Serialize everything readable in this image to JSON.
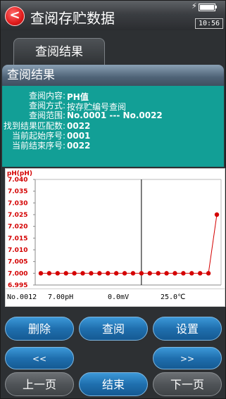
{
  "header": {
    "back_icon": "chevron-left-icon",
    "back_glyph": "<",
    "title": "查阅存贮数据",
    "time": "10:56"
  },
  "tab": {
    "label": "查阅结果"
  },
  "panel": {
    "title": "查阅结果",
    "info": [
      {
        "label": "查阅内容:",
        "value": "PH值"
      },
      {
        "label": "查阅方式:",
        "value": "按存贮编号查阅"
      },
      {
        "label": "查阅范围:",
        "value": "No.0001 --- No.0022"
      },
      {
        "label": "找到结果匹配数:",
        "value": "0022"
      },
      {
        "label": "当前起始序号:",
        "value": "0001"
      },
      {
        "label": "当前结束序号:",
        "value": "0022"
      }
    ]
  },
  "chart_data": {
    "type": "line",
    "ylabel": "pH(pH)",
    "ylim": [
      6.995,
      7.04
    ],
    "y_ticks": [
      "7.040",
      "7.035",
      "7.030",
      "7.025",
      "7.020",
      "7.015",
      "7.010",
      "7.005",
      "7.000",
      "6.995"
    ],
    "series": [
      {
        "values": [
          7.0,
          7.0,
          7.0,
          7.0,
          7.0,
          7.0,
          7.0,
          7.0,
          7.0,
          7.0,
          7.0,
          7.0,
          7.0,
          7.0,
          7.0,
          7.0,
          7.0,
          7.0,
          7.0,
          7.0,
          7.0,
          7.025
        ]
      }
    ],
    "cursor_index": 12,
    "colors": {
      "line": "#d40000",
      "axis_text": "#d40000",
      "cursor": "#000000",
      "grid": "#c0c0c0"
    }
  },
  "readout": {
    "no": "No.0012",
    "ph": "7.00pH",
    "mv": "0.0mV",
    "temp": "25.0℃"
  },
  "buttons": {
    "delete": "删除",
    "query": "查阅",
    "settings": "设置",
    "prev_fast": "<<",
    "next_fast": ">>",
    "prev_page": "上一页",
    "end": "结束",
    "next_page": "下一页"
  }
}
